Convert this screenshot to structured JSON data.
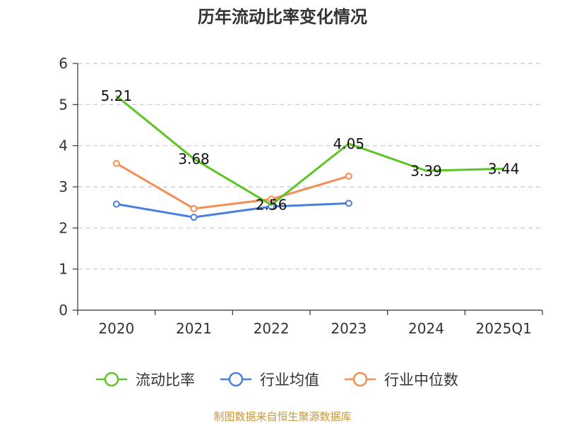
{
  "chart_data": {
    "type": "line",
    "title": "历年流动比率变化情况",
    "categories": [
      "2020",
      "2021",
      "2022",
      "2023",
      "2024",
      "2025Q1"
    ],
    "ylim": [
      0,
      6
    ],
    "yticks": [
      "0",
      "1",
      "2",
      "3",
      "4",
      "5",
      "6"
    ],
    "grid": true,
    "legend_position": "bottom",
    "series": [
      {
        "name": "流动比率",
        "color": "#5ec325",
        "values": [
          5.21,
          3.68,
          2.56,
          4.05,
          3.39,
          3.44
        ],
        "labels": [
          "5.21",
          "3.68",
          "2.56",
          "4.05",
          "3.39",
          "3.44"
        ],
        "markers": false
      },
      {
        "name": "行业均值",
        "color": "#4a7fdb",
        "values": [
          2.58,
          2.26,
          2.52,
          2.6,
          null,
          null
        ],
        "markers": true
      },
      {
        "name": "行业中位数",
        "color": "#f68d55",
        "values": [
          3.57,
          2.47,
          2.7,
          3.26,
          null,
          null
        ],
        "markers": true
      }
    ],
    "source": "制图数据来自恒生聚源数据库",
    "source_color": "#c8963c"
  }
}
